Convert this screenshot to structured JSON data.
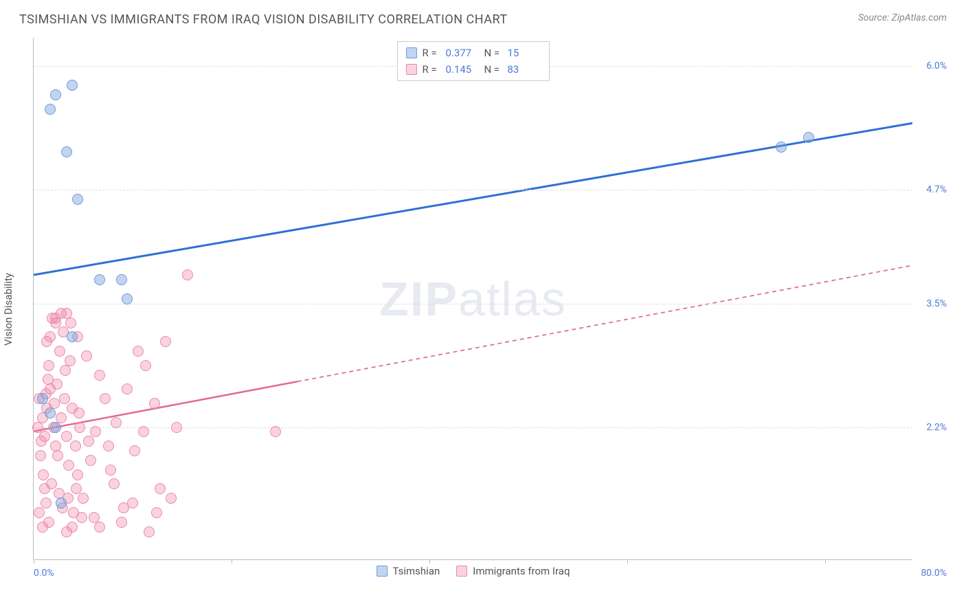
{
  "title": "TSIMSHIAN VS IMMIGRANTS FROM IRAQ VISION DISABILITY CORRELATION CHART",
  "source": "Source: ZipAtlas.com",
  "watermark": {
    "bold": "ZIP",
    "light": "atlas"
  },
  "chart": {
    "type": "scatter",
    "ylabel": "Vision Disability",
    "x_min": 0.0,
    "x_max": 80.0,
    "y_min": 0.8,
    "y_max": 6.3,
    "x_start_label": "0.0%",
    "x_end_label": "80.0%",
    "y_ticks": [
      {
        "value": 6.0,
        "label": "6.0%"
      },
      {
        "value": 4.7,
        "label": "4.7%"
      },
      {
        "value": 3.5,
        "label": "3.5%"
      },
      {
        "value": 2.2,
        "label": "2.2%"
      }
    ],
    "x_tick_positions": [
      0,
      0.225,
      0.45,
      0.675,
      0.9
    ],
    "background_color": "#ffffff",
    "grid_color": "#dddddd",
    "axis_color": "#bbbbbb",
    "label_color": "#4a7bd8",
    "series": [
      {
        "name": "Tsimshian",
        "legend_key": "series1_name",
        "color_fill": "rgba(120,160,220,0.45)",
        "color_stroke": "#6a9be0",
        "line_color": "#2e6fd6",
        "line_width": 3,
        "line_dash": "none",
        "marker_radius": 8,
        "R_value": "0.377",
        "N_value": "15",
        "regression": {
          "x1_frac": 0.0,
          "y1": 3.8,
          "x2_frac": 1.0,
          "y2": 5.4,
          "solid_until_frac": 1.0
        },
        "points": [
          {
            "x": 2.0,
            "y": 5.7
          },
          {
            "x": 3.5,
            "y": 5.8
          },
          {
            "x": 1.5,
            "y": 5.55
          },
          {
            "x": 3.0,
            "y": 5.1
          },
          {
            "x": 4.0,
            "y": 4.6
          },
          {
            "x": 2.0,
            "y": 2.2
          },
          {
            "x": 6.0,
            "y": 3.75
          },
          {
            "x": 8.0,
            "y": 3.75
          },
          {
            "x": 8.5,
            "y": 3.55
          },
          {
            "x": 3.5,
            "y": 3.15
          },
          {
            "x": 2.5,
            "y": 1.4
          },
          {
            "x": 68.0,
            "y": 5.15
          },
          {
            "x": 70.5,
            "y": 5.25
          },
          {
            "x": 1.5,
            "y": 2.35
          },
          {
            "x": 0.8,
            "y": 2.5
          }
        ]
      },
      {
        "name": "Immigrants from Iraq",
        "legend_key": "series2_name",
        "color_fill": "rgba(240,130,160,0.35)",
        "color_stroke": "#e88aa8",
        "line_color": "#e06a90",
        "line_width": 2.5,
        "line_dash": "6,5",
        "marker_radius": 8,
        "R_value": "0.145",
        "N_value": "83",
        "regression": {
          "x1_frac": 0.0,
          "y1": 2.15,
          "x2_frac": 1.0,
          "y2": 3.9,
          "solid_until_frac": 0.3
        },
        "points": [
          {
            "x": 0.5,
            "y": 2.5
          },
          {
            "x": 0.8,
            "y": 2.3
          },
          {
            "x": 1.0,
            "y": 2.1
          },
          {
            "x": 1.2,
            "y": 2.4
          },
          {
            "x": 1.5,
            "y": 2.6
          },
          {
            "x": 1.8,
            "y": 2.2
          },
          {
            "x": 2.0,
            "y": 2.0
          },
          {
            "x": 2.2,
            "y": 1.9
          },
          {
            "x": 2.5,
            "y": 2.3
          },
          {
            "x": 2.8,
            "y": 2.5
          },
          {
            "x": 3.0,
            "y": 2.1
          },
          {
            "x": 3.2,
            "y": 1.8
          },
          {
            "x": 3.5,
            "y": 2.4
          },
          {
            "x": 3.8,
            "y": 2.0
          },
          {
            "x": 4.0,
            "y": 1.7
          },
          {
            "x": 4.2,
            "y": 2.2
          },
          {
            "x": 0.6,
            "y": 1.9
          },
          {
            "x": 0.9,
            "y": 1.7
          },
          {
            "x": 1.1,
            "y": 2.55
          },
          {
            "x": 1.3,
            "y": 2.7
          },
          {
            "x": 1.6,
            "y": 1.6
          },
          {
            "x": 1.9,
            "y": 2.45
          },
          {
            "x": 2.1,
            "y": 2.65
          },
          {
            "x": 2.3,
            "y": 1.5
          },
          {
            "x": 2.6,
            "y": 1.35
          },
          {
            "x": 2.9,
            "y": 2.8
          },
          {
            "x": 3.1,
            "y": 1.45
          },
          {
            "x": 3.3,
            "y": 2.9
          },
          {
            "x": 3.6,
            "y": 1.3
          },
          {
            "x": 3.9,
            "y": 1.55
          },
          {
            "x": 4.1,
            "y": 2.35
          },
          {
            "x": 4.4,
            "y": 1.25
          },
          {
            "x": 4.8,
            "y": 2.95
          },
          {
            "x": 5.2,
            "y": 1.85
          },
          {
            "x": 5.6,
            "y": 2.15
          },
          {
            "x": 6.0,
            "y": 1.15
          },
          {
            "x": 6.5,
            "y": 2.5
          },
          {
            "x": 7.0,
            "y": 1.75
          },
          {
            "x": 7.5,
            "y": 2.25
          },
          {
            "x": 8.0,
            "y": 1.2
          },
          {
            "x": 8.5,
            "y": 2.6
          },
          {
            "x": 9.0,
            "y": 1.4
          },
          {
            "x": 9.5,
            "y": 3.0
          },
          {
            "x": 10.0,
            "y": 2.15
          },
          {
            "x": 10.5,
            "y": 1.1
          },
          {
            "x": 11.0,
            "y": 2.45
          },
          {
            "x": 11.5,
            "y": 1.55
          },
          {
            "x": 12.0,
            "y": 3.1
          },
          {
            "x": 13.0,
            "y": 2.2
          },
          {
            "x": 14.0,
            "y": 3.8
          },
          {
            "x": 0.4,
            "y": 2.2
          },
          {
            "x": 0.7,
            "y": 2.05
          },
          {
            "x": 1.0,
            "y": 1.55
          },
          {
            "x": 1.4,
            "y": 2.85
          },
          {
            "x": 1.7,
            "y": 3.35
          },
          {
            "x": 2.0,
            "y": 3.3
          },
          {
            "x": 2.4,
            "y": 3.0
          },
          {
            "x": 2.7,
            "y": 3.2
          },
          {
            "x": 3.0,
            "y": 3.4
          },
          {
            "x": 3.4,
            "y": 3.3
          },
          {
            "x": 1.2,
            "y": 3.1
          },
          {
            "x": 1.5,
            "y": 3.15
          },
          {
            "x": 4.5,
            "y": 1.45
          },
          {
            "x": 5.0,
            "y": 2.05
          },
          {
            "x": 5.5,
            "y": 1.25
          },
          {
            "x": 6.0,
            "y": 2.75
          },
          {
            "x": 6.8,
            "y": 2.0
          },
          {
            "x": 7.3,
            "y": 1.6
          },
          {
            "x": 8.2,
            "y": 1.35
          },
          {
            "x": 9.2,
            "y": 1.95
          },
          {
            "x": 10.2,
            "y": 2.85
          },
          {
            "x": 11.2,
            "y": 1.3
          },
          {
            "x": 12.5,
            "y": 1.45
          },
          {
            "x": 22.0,
            "y": 2.15
          },
          {
            "x": 0.5,
            "y": 1.3
          },
          {
            "x": 0.8,
            "y": 1.15
          },
          {
            "x": 1.1,
            "y": 1.4
          },
          {
            "x": 1.4,
            "y": 1.2
          },
          {
            "x": 2.0,
            "y": 3.35
          },
          {
            "x": 2.5,
            "y": 3.4
          },
          {
            "x": 3.0,
            "y": 1.1
          },
          {
            "x": 3.5,
            "y": 1.15
          },
          {
            "x": 4.0,
            "y": 3.15
          }
        ]
      }
    ],
    "legend_top": {
      "R_label": "R =",
      "N_label": "N ="
    },
    "legend_bottom": {
      "series1_name": "Tsimshian",
      "series2_name": "Immigrants from Iraq"
    }
  }
}
